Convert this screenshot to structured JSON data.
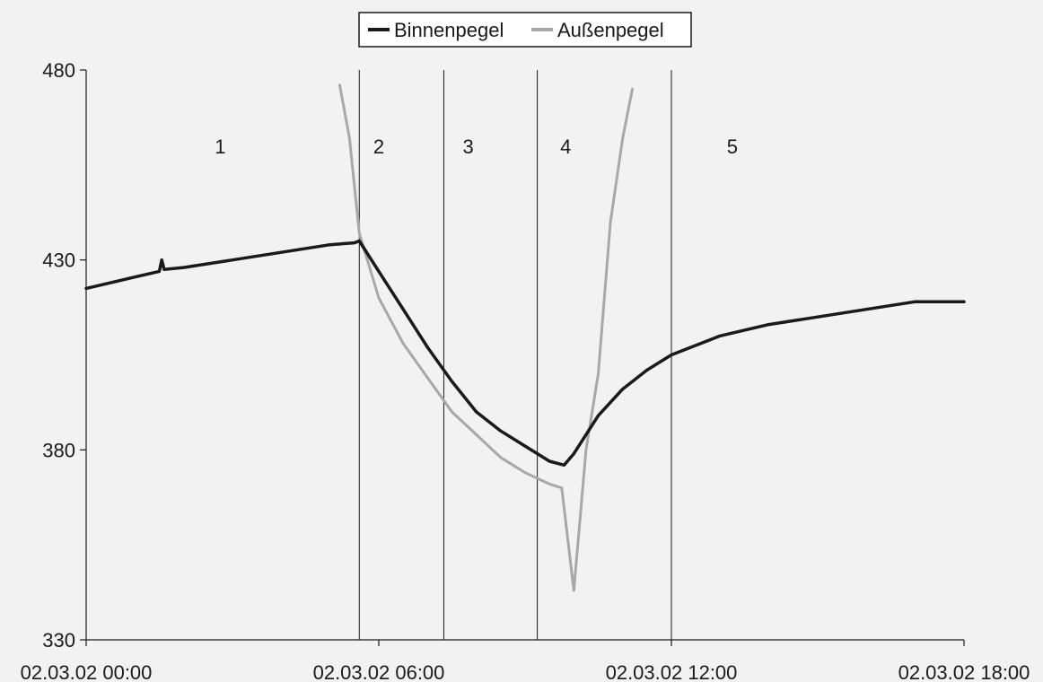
{
  "chart_data": {
    "type": "line",
    "x_axis": {
      "type": "datetime",
      "min": "02.03.02 00:00",
      "max": "02.03.02 18:00",
      "ticks": [
        "02.03.02 00:00",
        "02.03.02 06:00",
        "02.03.02 12:00",
        "02.03.02 18:00"
      ]
    },
    "y_axis": {
      "min": 330,
      "max": 480,
      "ticks": [
        330,
        380,
        430,
        480
      ]
    },
    "grid": false,
    "legend": {
      "placement": "top-center",
      "entries": [
        "Binnenpegel",
        "Außenpegel"
      ]
    },
    "series": [
      {
        "name": "Binnenpegel",
        "color": "#1a1a1a",
        "points": [
          [
            "02.03.02 00:00",
            422.5
          ],
          [
            "02.03.02 00:30",
            424
          ],
          [
            "02.03.02 01:00",
            425.5
          ],
          [
            "02.03.02 01:30",
            427
          ],
          [
            "02.03.02 01:33",
            430
          ],
          [
            "02.03.02 01:36",
            427.5
          ],
          [
            "02.03.02 02:00",
            428
          ],
          [
            "02.03.02 03:00",
            430
          ],
          [
            "02.03.02 04:00",
            432
          ],
          [
            "02.03.02 05:00",
            434
          ],
          [
            "02.03.02 05:30",
            434.5
          ],
          [
            "02.03.02 05:36",
            435
          ],
          [
            "02.03.02 06:00",
            427
          ],
          [
            "02.03.02 06:30",
            417
          ],
          [
            "02.03.02 07:00",
            407
          ],
          [
            "02.03.02 07:30",
            398
          ],
          [
            "02.03.02 08:00",
            390
          ],
          [
            "02.03.02 08:30",
            385
          ],
          [
            "02.03.02 09:00",
            381
          ],
          [
            "02.03.02 09:30",
            377
          ],
          [
            "02.03.02 09:48",
            376
          ],
          [
            "02.03.02 10:00",
            379
          ],
          [
            "02.03.02 10:30",
            389
          ],
          [
            "02.03.02 11:00",
            396
          ],
          [
            "02.03.02 11:30",
            401
          ],
          [
            "02.03.02 12:00",
            405
          ],
          [
            "02.03.02 13:00",
            410
          ],
          [
            "02.03.02 14:00",
            413
          ],
          [
            "02.03.02 15:00",
            415
          ],
          [
            "02.03.02 16:00",
            417
          ],
          [
            "02.03.02 17:00",
            419
          ],
          [
            "02.03.02 18:00",
            419
          ]
        ]
      },
      {
        "name": "Außenpegel",
        "color": "#a8a8a8",
        "points": [
          [
            "02.03.02 05:12",
            476
          ],
          [
            "02.03.02 05:24",
            462
          ],
          [
            "02.03.02 05:36",
            437
          ],
          [
            "02.03.02 06:00",
            420
          ],
          [
            "02.03.02 06:30",
            408
          ],
          [
            "02.03.02 07:00",
            399
          ],
          [
            "02.03.02 07:30",
            390
          ],
          [
            "02.03.02 08:00",
            384
          ],
          [
            "02.03.02 08:30",
            378
          ],
          [
            "02.03.02 09:00",
            374
          ],
          [
            "02.03.02 09:30",
            371
          ],
          [
            "02.03.02 09:45",
            370
          ],
          [
            "02.03.02 10:00",
            343
          ],
          [
            "02.03.02 10:15",
            380
          ],
          [
            "02.03.02 10:30",
            400
          ],
          [
            "02.03.02 10:45",
            440
          ],
          [
            "02.03.02 11:00",
            462
          ],
          [
            "02.03.02 11:12",
            475
          ]
        ]
      }
    ],
    "phase_lines": [
      "02.03.02 05:36",
      "02.03.02 07:20",
      "02.03.02 09:15",
      "02.03.02 12:00"
    ],
    "phase_labels": [
      {
        "text": "1",
        "x": "02.03.02 02:45",
        "y": 458
      },
      {
        "text": "2",
        "x": "02.03.02 06:00",
        "y": 458
      },
      {
        "text": "3",
        "x": "02.03.02 07:50",
        "y": 458
      },
      {
        "text": "4",
        "x": "02.03.02 09:50",
        "y": 458
      },
      {
        "text": "5",
        "x": "02.03.02 13:15",
        "y": 458
      }
    ]
  }
}
